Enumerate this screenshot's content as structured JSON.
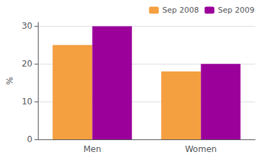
{
  "chart_data": {
    "type": "bar",
    "categories": [
      "Men",
      "Women"
    ],
    "series": [
      {
        "name": "Sep 2008",
        "color": "#F4A040",
        "values": [
          25,
          18
        ]
      },
      {
        "name": "Sep 2009",
        "color": "#9B009B",
        "values": [
          30,
          20
        ]
      }
    ],
    "ylabel": "%",
    "ylim": [
      0,
      31
    ],
    "yticks": [
      0,
      10,
      20,
      30
    ],
    "grid": true,
    "legend": "upper right"
  }
}
